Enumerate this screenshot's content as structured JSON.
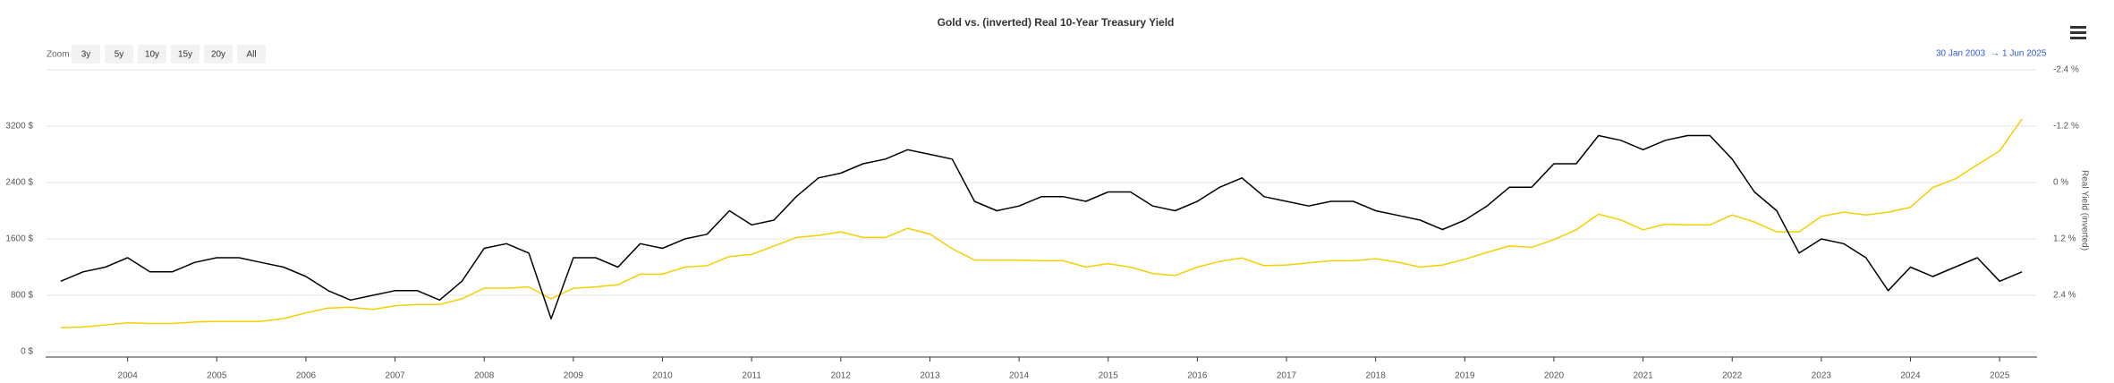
{
  "chart_data": {
    "type": "line",
    "title": "Gold vs. (inverted) Real 10-Year Treasury Yield",
    "zoom": {
      "label": "Zoom",
      "buttons": [
        "3y",
        "5y",
        "10y",
        "15y",
        "20y",
        "All"
      ]
    },
    "range": {
      "from": "30 Jan 2003",
      "arrow": "→",
      "to": "1 Jun 2025"
    },
    "y2_label": "Real Yield (inverted)",
    "x": [
      2003.25,
      2003.5,
      2003.75,
      2004,
      2004.25,
      2004.5,
      2004.75,
      2005,
      2005.25,
      2005.5,
      2005.75,
      2006,
      2006.25,
      2006.5,
      2006.75,
      2007,
      2007.25,
      2007.5,
      2007.75,
      2008,
      2008.25,
      2008.5,
      2008.75,
      2009,
      2009.25,
      2009.5,
      2009.75,
      2010,
      2010.25,
      2010.5,
      2010.75,
      2011,
      2011.25,
      2011.5,
      2011.75,
      2012,
      2012.25,
      2012.5,
      2012.75,
      2013,
      2013.25,
      2013.5,
      2013.75,
      2014,
      2014.25,
      2014.5,
      2014.75,
      2015,
      2015.25,
      2015.5,
      2015.75,
      2016,
      2016.25,
      2016.5,
      2016.75,
      2017,
      2017.25,
      2017.5,
      2017.75,
      2018,
      2018.25,
      2018.5,
      2018.75,
      2019,
      2019.25,
      2019.5,
      2019.75,
      2020,
      2020.25,
      2020.5,
      2020.75,
      2021,
      2021.25,
      2021.5,
      2021.75,
      2022,
      2022.25,
      2022.5,
      2022.75,
      2023,
      2023.25,
      2023.5,
      2023.75,
      2024,
      2024.25,
      2024.5,
      2024.75,
      2025,
      2025.25
    ],
    "series": [
      {
        "color": "#f5cf00",
        "values": [
          340,
          350,
          380,
          410,
          400,
          400,
          420,
          430,
          430,
          430,
          470,
          550,
          620,
          630,
          600,
          650,
          670,
          670,
          750,
          900,
          900,
          920,
          750,
          900,
          920,
          950,
          1100,
          1100,
          1200,
          1220,
          1350,
          1380,
          1500,
          1620,
          1650,
          1700,
          1620,
          1620,
          1750,
          1670,
          1460,
          1300,
          1300,
          1300,
          1290,
          1290,
          1200,
          1250,
          1200,
          1110,
          1080,
          1200,
          1280,
          1330,
          1220,
          1230,
          1260,
          1290,
          1290,
          1320,
          1270,
          1200,
          1230,
          1310,
          1410,
          1500,
          1480,
          1590,
          1730,
          1950,
          1870,
          1730,
          1810,
          1800,
          1800,
          1940,
          1840,
          1700,
          1700,
          1920,
          1980,
          1940,
          1980,
          2050,
          2330,
          2450,
          2650,
          2850,
          3300
        ]
      },
      {
        "color": "#000000",
        "axis": "y2",
        "values": [
          2.1,
          1.9,
          1.8,
          1.6,
          1.9,
          1.9,
          1.7,
          1.6,
          1.6,
          1.7,
          1.8,
          2.0,
          2.3,
          2.5,
          2.4,
          2.3,
          2.3,
          2.5,
          2.1,
          1.4,
          1.3,
          1.5,
          2.9,
          1.6,
          1.6,
          1.8,
          1.3,
          1.4,
          1.2,
          1.1,
          0.6,
          0.9,
          0.8,
          0.3,
          -0.1,
          -0.2,
          -0.4,
          -0.5,
          -0.7,
          -0.6,
          -0.5,
          0.4,
          0.6,
          0.5,
          0.3,
          0.3,
          0.4,
          0.2,
          0.2,
          0.5,
          0.6,
          0.4,
          0.1,
          -0.1,
          0.3,
          0.4,
          0.5,
          0.4,
          0.4,
          0.6,
          0.7,
          0.8,
          1.0,
          0.8,
          0.5,
          0.1,
          0.1,
          -0.4,
          -0.4,
          -1.0,
          -0.9,
          -0.7,
          -0.9,
          -1.0,
          -1.0,
          -0.5,
          0.2,
          0.6,
          1.5,
          1.2,
          1.3,
          1.6,
          2.3,
          1.8,
          2.0,
          1.8,
          1.6,
          2.1,
          1.9
        ]
      }
    ],
    "xlim": [
      2003.08,
      2025.42
    ],
    "xticks": [
      2004,
      2005,
      2006,
      2007,
      2008,
      2009,
      2010,
      2011,
      2012,
      2013,
      2014,
      2015,
      2016,
      2017,
      2018,
      2019,
      2020,
      2021,
      2022,
      2023,
      2024,
      2025
    ],
    "ylim": [
      0,
      4000
    ],
    "yticks": [
      {
        "value": 0,
        "label": "0 $"
      },
      {
        "value": 800,
        "label": "800 $"
      },
      {
        "value": 1600,
        "label": "1600 $"
      },
      {
        "value": 2400,
        "label": "2400 $"
      },
      {
        "value": 3200,
        "label": "3200 $"
      }
    ],
    "y2lim": [
      3.6,
      -2.4
    ],
    "y2ticks": [
      {
        "value": -2.4,
        "label": "-2.4 %"
      },
      {
        "value": -1.2,
        "label": "-1.2 %"
      },
      {
        "value": 0,
        "label": "0 %"
      },
      {
        "value": 1.2,
        "label": "1.2 %"
      },
      {
        "value": 2.4,
        "label": "2.4 %"
      }
    ],
    "grid": true
  }
}
